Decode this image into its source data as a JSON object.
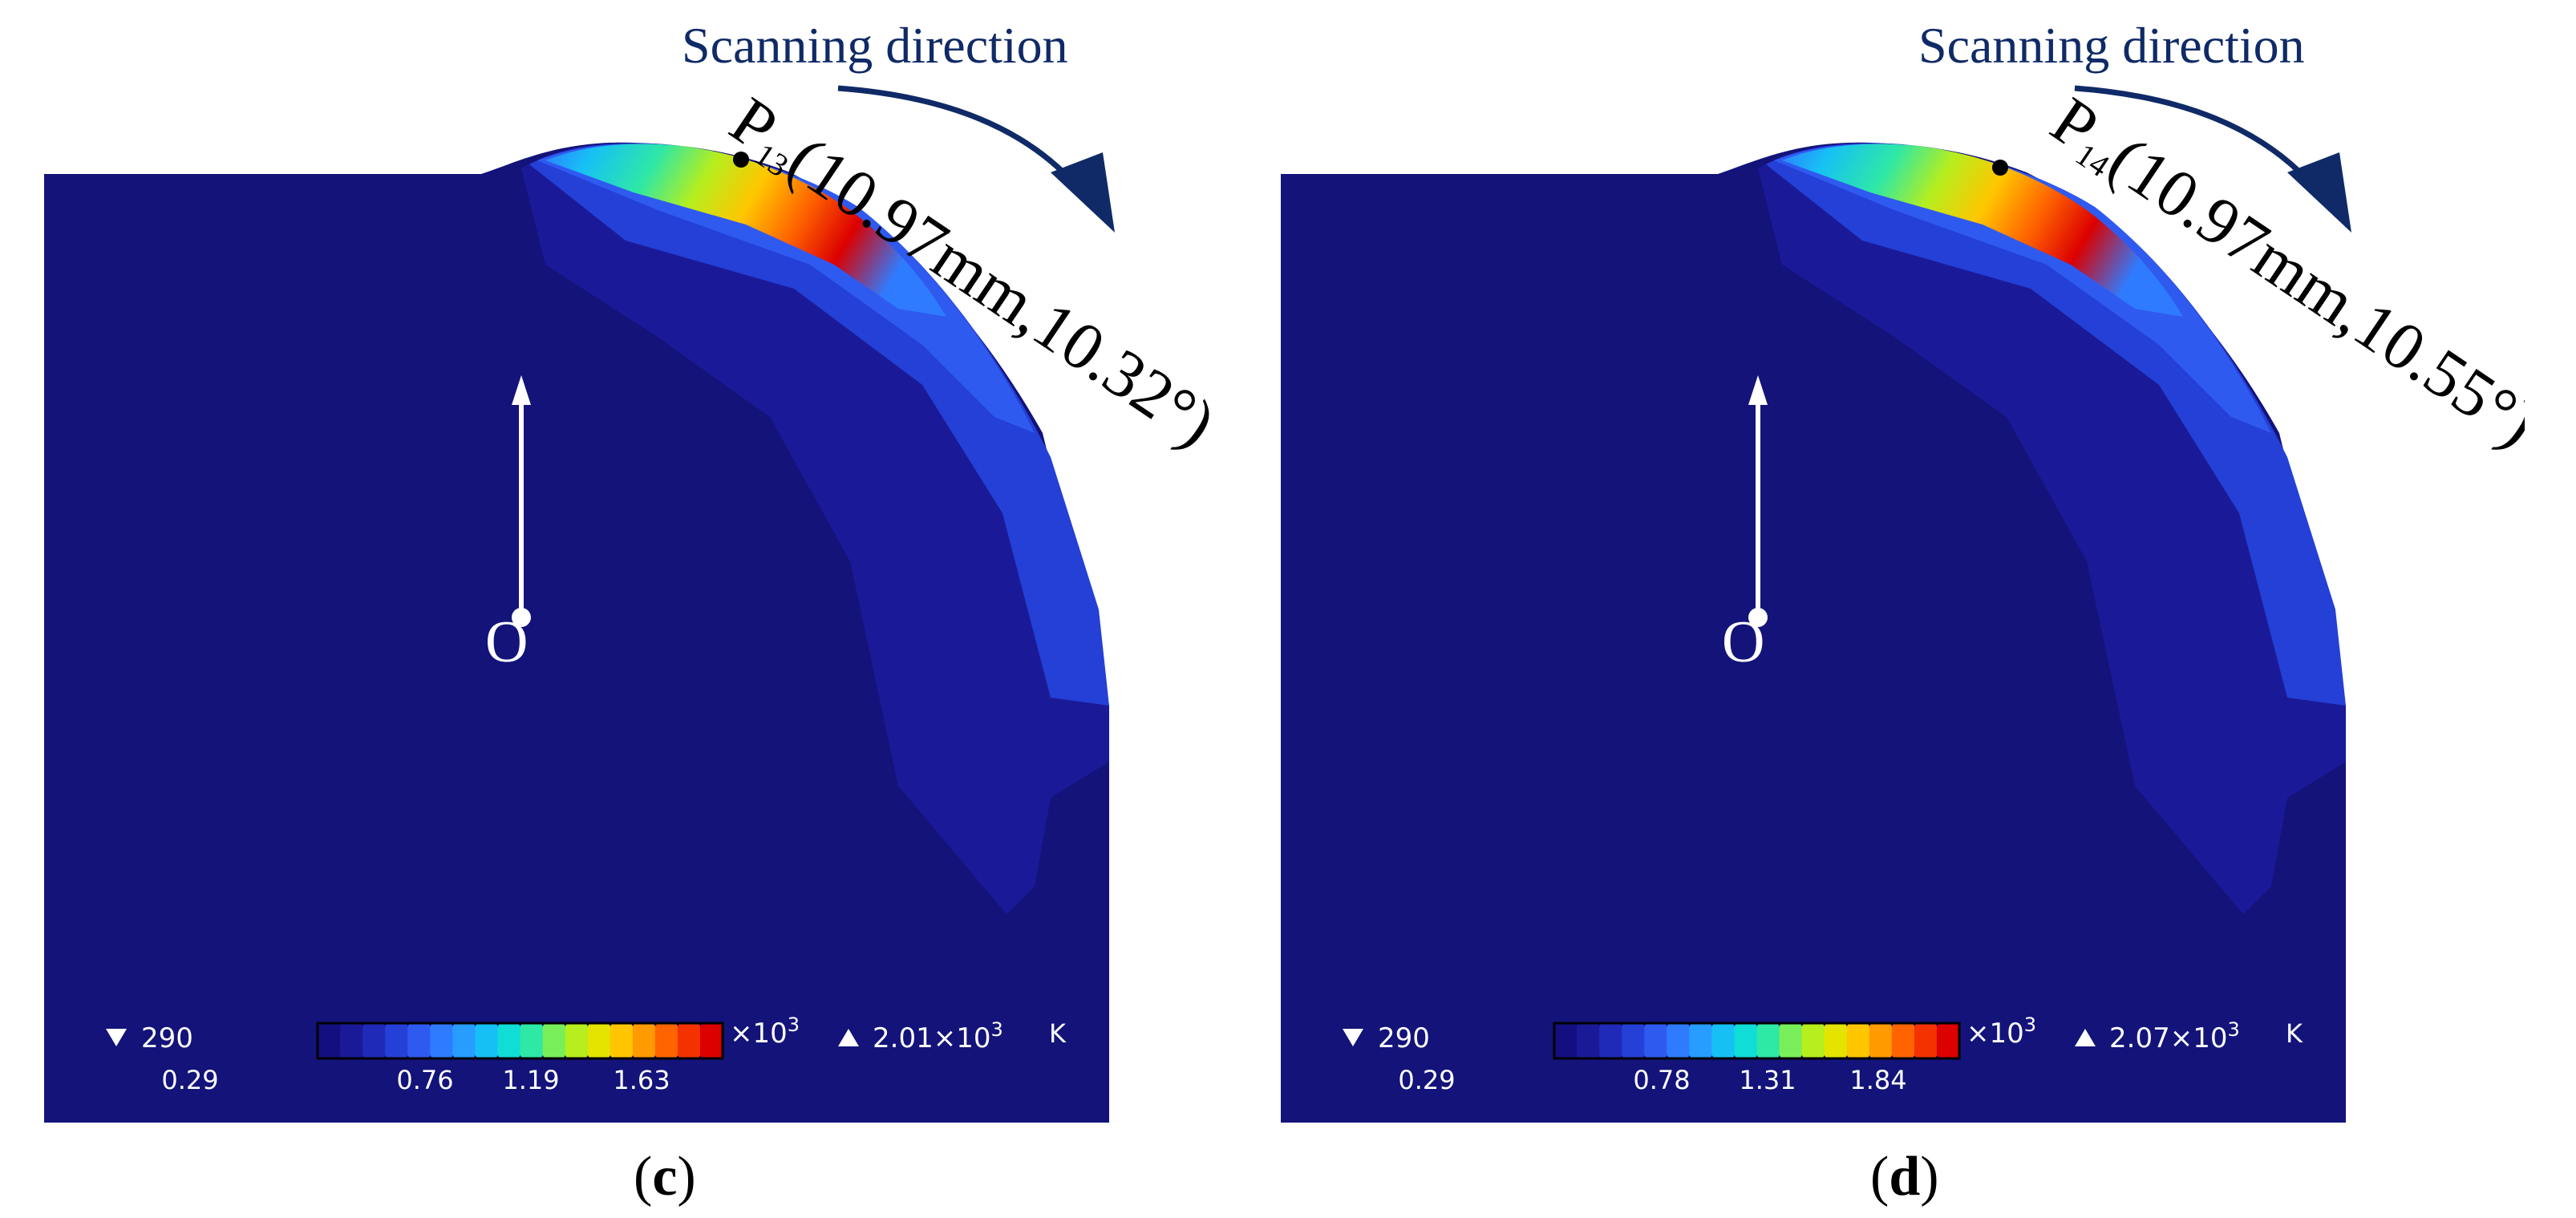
{
  "colors": {
    "background": "#13137a",
    "arrow": "#0f2a66",
    "marker": "#ffffff",
    "colormap": [
      "#140f80",
      "#1a1a99",
      "#1f2ab8",
      "#2440d6",
      "#2f5af0",
      "#2f7bff",
      "#279dff",
      "#16c0f5",
      "#10ddd6",
      "#2ee8a6",
      "#78ef5a",
      "#b6ee1e",
      "#e4e400",
      "#ffc600",
      "#ff9a00",
      "#ff6400",
      "#f43200",
      "#dc0000"
    ]
  },
  "panels": [
    {
      "id": "c",
      "label": "c",
      "direction_label": "Scanning direction",
      "point_name": "P",
      "point_sub": "13",
      "point_coord": "(10.97mm,10.32°)",
      "origin_label": "O",
      "legend": {
        "min_label": "290",
        "ticks": [
          "0.29",
          "0.76",
          "1.19",
          "1.63"
        ],
        "scale": "×10",
        "scale_exp": "3",
        "max_base": "2.01×10",
        "max_exp": "3",
        "unit": "K"
      }
    },
    {
      "id": "d",
      "label": "d",
      "direction_label": "Scanning direction",
      "point_name": "P",
      "point_sub": "14",
      "point_coord": "(10.97mm,10.55°)",
      "origin_label": "O",
      "legend": {
        "min_label": "290",
        "ticks": [
          "0.29",
          "0.78",
          "1.31",
          "1.84"
        ],
        "scale": "×10",
        "scale_exp": "3",
        "max_base": "2.07×10",
        "max_exp": "3",
        "unit": "K"
      }
    }
  ]
}
